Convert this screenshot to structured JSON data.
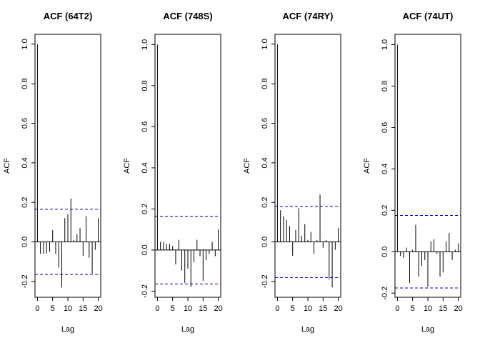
{
  "chart_data": [
    {
      "type": "bar",
      "title": "ACF (64T2)",
      "xlabel": "Lag",
      "ylabel": "ACF",
      "xlim": [
        -0.8,
        20.8
      ],
      "ylim": [
        -0.28,
        1.05
      ],
      "xticks": [
        0,
        5,
        10,
        15,
        20
      ],
      "yticks": [
        -0.2,
        0.0,
        0.2,
        0.4,
        0.6,
        0.8,
        1.0
      ],
      "lags": [
        0,
        1,
        2,
        3,
        4,
        5,
        6,
        7,
        8,
        9,
        10,
        11,
        12,
        13,
        14,
        15,
        16,
        17,
        18,
        19,
        20
      ],
      "values": [
        1.0,
        -0.06,
        -0.06,
        -0.06,
        -0.05,
        0.06,
        -0.06,
        -0.13,
        -0.23,
        0.12,
        0.14,
        0.22,
        0.01,
        0.04,
        0.07,
        -0.07,
        0.13,
        -0.08,
        -0.16,
        -0.04,
        0.12
      ],
      "ci": 0.165,
      "ci_color": "#0000cc",
      "grid": false
    },
    {
      "type": "bar",
      "title": "ACF (748S)",
      "xlabel": "Lag",
      "ylabel": "ACF",
      "xlim": [
        -0.8,
        20.8
      ],
      "ylim": [
        -0.23,
        1.05
      ],
      "xticks": [
        0,
        5,
        10,
        15,
        20
      ],
      "yticks": [
        -0.2,
        0.0,
        0.2,
        0.4,
        0.6,
        0.8,
        1.0
      ],
      "lags": [
        0,
        1,
        2,
        3,
        4,
        5,
        6,
        7,
        8,
        9,
        10,
        11,
        12,
        13,
        14,
        15,
        16,
        17,
        18,
        19,
        20
      ],
      "values": [
        1.0,
        0.04,
        0.04,
        0.03,
        0.03,
        0.02,
        -0.07,
        0.05,
        -0.1,
        -0.16,
        -0.09,
        -0.18,
        -0.06,
        0.05,
        -0.03,
        -0.15,
        -0.05,
        -0.02,
        0.04,
        -0.03,
        0.1
      ],
      "ci": 0.165,
      "ci_color": "#0000cc",
      "grid": false
    },
    {
      "type": "bar",
      "title": "ACF (74RY)",
      "xlabel": "Lag",
      "ylabel": "ACF",
      "xlim": [
        -0.8,
        20.8
      ],
      "ylim": [
        -0.28,
        1.05
      ],
      "xticks": [
        0,
        5,
        10,
        15,
        20
      ],
      "yticks": [
        -0.2,
        0.0,
        0.2,
        0.4,
        0.6,
        0.8,
        1.0
      ],
      "lags": [
        0,
        1,
        2,
        3,
        4,
        5,
        6,
        7,
        8,
        9,
        10,
        11,
        12,
        13,
        14,
        15,
        16,
        17,
        18,
        19,
        20
      ],
      "values": [
        1.0,
        0.16,
        0.13,
        0.11,
        0.08,
        -0.07,
        0.06,
        0.17,
        0.03,
        0.09,
        0.01,
        0.05,
        -0.06,
        0.01,
        0.24,
        -0.03,
        0.01,
        -0.19,
        -0.23,
        -0.04,
        0.07
      ],
      "ci": 0.18,
      "ci_color": "#0000cc",
      "grid": false
    },
    {
      "type": "bar",
      "title": "ACF (74UT)",
      "xlabel": "Lag",
      "ylabel": "ACF",
      "xlim": [
        -0.8,
        20.8
      ],
      "ylim": [
        -0.22,
        1.05
      ],
      "xticks": [
        0,
        5,
        10,
        15,
        20
      ],
      "yticks": [
        -0.2,
        0.0,
        0.2,
        0.4,
        0.6,
        0.8,
        1.0
      ],
      "lags": [
        0,
        1,
        2,
        3,
        4,
        5,
        6,
        7,
        8,
        9,
        10,
        11,
        12,
        13,
        14,
        15,
        16,
        17,
        18,
        19,
        20
      ],
      "values": [
        1.0,
        -0.02,
        -0.03,
        0.02,
        -0.15,
        0.01,
        0.13,
        -0.12,
        -0.07,
        -0.04,
        -0.17,
        0.05,
        0.06,
        -0.01,
        -0.12,
        -0.1,
        0.05,
        0.09,
        -0.04,
        0.01,
        0.04
      ],
      "ci": 0.175,
      "ci_color": "#0000cc",
      "grid": false
    }
  ]
}
